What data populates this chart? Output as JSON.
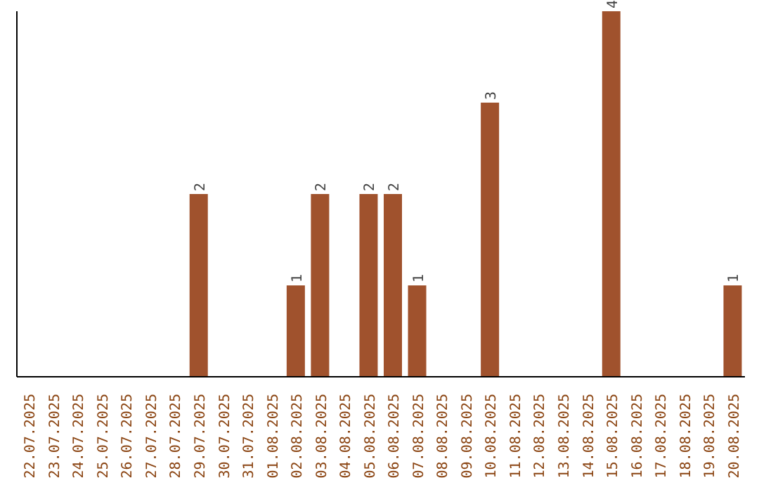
{
  "chart_data": {
    "type": "bar",
    "categories": [
      "22.07.2025",
      "23.07.2025",
      "24.07.2025",
      "25.07.2025",
      "26.07.2025",
      "27.07.2025",
      "28.07.2025",
      "29.07.2025",
      "30.07.2025",
      "31.07.2025",
      "01.08.2025",
      "02.08.2025",
      "03.08.2025",
      "04.08.2025",
      "05.08.2025",
      "06.08.2025",
      "07.08.2025",
      "08.08.2025",
      "09.08.2025",
      "10.08.2025",
      "11.08.2025",
      "12.08.2025",
      "13.08.2025",
      "14.08.2025",
      "15.08.2025",
      "16.08.2025",
      "17.08.2025",
      "18.08.2025",
      "19.08.2025",
      "20.08.2025"
    ],
    "values": [
      0,
      0,
      0,
      0,
      0,
      0,
      0,
      2,
      0,
      0,
      0,
      1,
      2,
      0,
      2,
      2,
      1,
      0,
      0,
      3,
      0,
      0,
      0,
      0,
      4,
      0,
      0,
      0,
      0,
      1
    ],
    "value_labels": [
      null,
      null,
      null,
      null,
      null,
      null,
      null,
      "2",
      null,
      null,
      null,
      "1",
      "2",
      null,
      "2",
      "2",
      "1",
      null,
      null,
      "3",
      null,
      null,
      null,
      null,
      "4",
      null,
      null,
      null,
      null,
      "1"
    ],
    "color": "#a0522d",
    "relative": false,
    "grid": false,
    "legend": false
  }
}
